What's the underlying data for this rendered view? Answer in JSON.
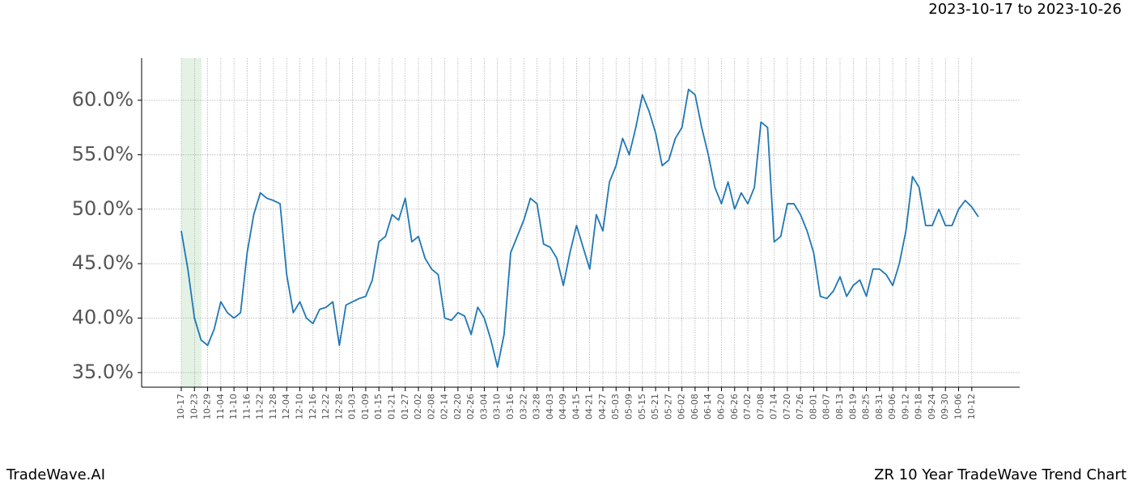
{
  "chart_data": {
    "type": "line",
    "title": "2023-10-17 to 2023-10-26",
    "brand": "TradeWave.AI",
    "caption": "ZR 10 Year TradeWave Trend Chart",
    "categories": [
      "10-17",
      null,
      "10-23",
      null,
      "10-29",
      null,
      "11-04",
      null,
      "11-10",
      null,
      "11-16",
      null,
      "11-22",
      null,
      "11-28",
      null,
      "12-04",
      null,
      "12-10",
      null,
      "12-16",
      null,
      "12-22",
      null,
      "12-28",
      null,
      "01-03",
      null,
      "01-09",
      null,
      "01-15",
      null,
      "01-21",
      null,
      "01-27",
      null,
      "02-02",
      null,
      "02-08",
      null,
      "02-14",
      null,
      "02-20",
      null,
      "02-26",
      null,
      "03-04",
      null,
      "03-10",
      null,
      "03-16",
      null,
      "03-22",
      null,
      "03-28",
      null,
      "04-03",
      null,
      "04-09",
      null,
      "04-15",
      null,
      "04-21",
      null,
      "04-27",
      null,
      "05-03",
      null,
      "05-09",
      null,
      "05-15",
      null,
      "05-21",
      null,
      "05-27",
      null,
      "06-02",
      null,
      "06-08",
      null,
      "06-14",
      null,
      "06-20",
      null,
      "06-26",
      null,
      "07-02",
      null,
      "07-08",
      null,
      "07-14",
      null,
      "07-20",
      null,
      "07-26",
      null,
      "08-01",
      null,
      "08-07",
      null,
      "08-13",
      null,
      "08-19",
      null,
      "08-25",
      null,
      "08-31",
      null,
      "09-06",
      null,
      "09-12",
      null,
      "09-18",
      null,
      "09-24",
      null,
      "09-30",
      null,
      "10-06",
      null,
      "10-12",
      null
    ],
    "series": [
      {
        "name": "ZR",
        "color": "#1f77b4",
        "values": [
          48.0,
          44.5,
          40.0,
          38.0,
          37.5,
          39.0,
          41.5,
          40.5,
          40.0,
          40.5,
          46.0,
          49.5,
          51.5,
          51.0,
          50.8,
          50.5,
          44.0,
          40.5,
          41.5,
          40.0,
          39.5,
          40.8,
          41.0,
          41.5,
          37.5,
          41.2,
          41.5,
          41.8,
          42.0,
          43.5,
          47.0,
          47.5,
          49.5,
          49.0,
          51.0,
          47.0,
          47.5,
          45.5,
          44.5,
          44.0,
          40.0,
          39.8,
          40.5,
          40.2,
          38.5,
          41.0,
          40.0,
          38.0,
          35.5,
          38.5,
          46.0,
          47.5,
          49.0,
          51.0,
          50.5,
          46.8,
          46.5,
          45.5,
          43.0,
          46.0,
          48.5,
          46.5,
          44.5,
          49.5,
          48.0,
          52.5,
          54.0,
          56.5,
          55.0,
          57.5,
          60.5,
          59.0,
          57.0,
          54.0,
          54.5,
          56.5,
          57.5,
          61.0,
          60.5,
          57.5,
          55.0,
          52.0,
          50.5,
          52.5,
          50.0,
          51.5,
          50.5,
          52.0,
          58.0,
          57.5,
          47.0,
          47.5,
          50.5,
          50.5,
          49.5,
          48.0,
          46.0,
          42.0,
          41.8,
          42.5,
          43.8,
          42.0,
          43.0,
          43.5,
          42.0,
          44.5,
          44.5,
          44.0,
          43.0,
          45.0,
          48.0,
          53.0,
          52.0,
          48.5,
          48.5,
          50.0,
          48.5,
          48.5,
          50.0,
          50.8,
          50.2,
          49.3
        ]
      }
    ],
    "ylim": [
      33.66,
      63.86
    ],
    "yticks": [
      {
        "value": 35,
        "label": "35.0%"
      },
      {
        "value": 40,
        "label": "40.0%"
      },
      {
        "value": 45,
        "label": "45.0%"
      },
      {
        "value": 50,
        "label": "50.0%"
      },
      {
        "value": 55,
        "label": "55.0%"
      },
      {
        "value": 60,
        "label": "60.0%"
      }
    ],
    "grid": true
  }
}
